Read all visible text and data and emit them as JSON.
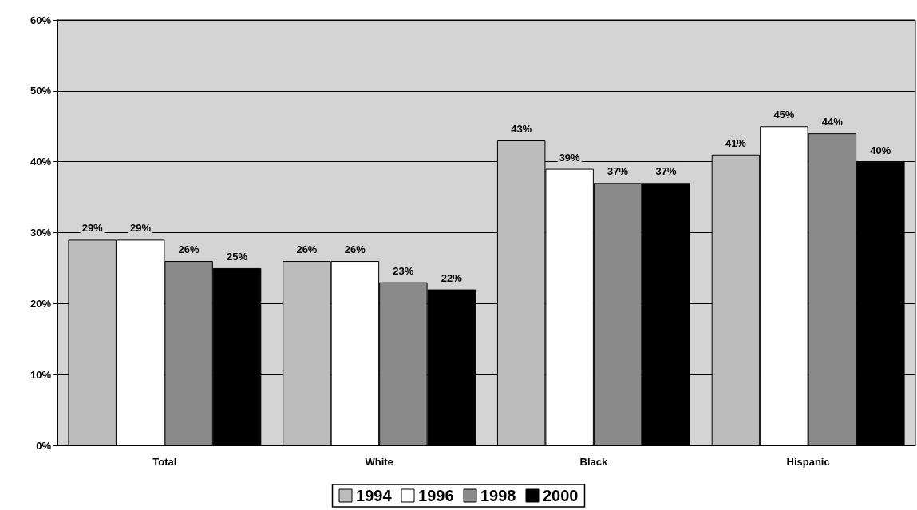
{
  "chart_data": {
    "type": "bar",
    "categories": [
      "Total",
      "White",
      "Black",
      "Hispanic"
    ],
    "series": [
      {
        "name": "1994",
        "color": "#bcbcbc",
        "values": [
          29,
          26,
          43,
          41
        ],
        "value_labels": [
          "29%",
          "26%",
          "43%",
          "41%"
        ]
      },
      {
        "name": "1996",
        "color": "#ffffff",
        "values": [
          29,
          26,
          39,
          45
        ],
        "value_labels": [
          "29%",
          "26%",
          "39%",
          "45%"
        ]
      },
      {
        "name": "1998",
        "color": "#8a8a8a",
        "values": [
          26,
          23,
          37,
          44
        ],
        "value_labels": [
          "26%",
          "23%",
          "37%",
          "44%"
        ]
      },
      {
        "name": "2000",
        "color": "#000000",
        "values": [
          25,
          22,
          37,
          40
        ],
        "value_labels": [
          "25%",
          "22%",
          "37%",
          "40%"
        ]
      }
    ],
    "ylim": [
      0,
      60
    ],
    "yticks": [
      {
        "value": 0,
        "label": "0%"
      },
      {
        "value": 10,
        "label": "10%"
      },
      {
        "value": 20,
        "label": "20%"
      },
      {
        "value": 30,
        "label": "30%"
      },
      {
        "value": 40,
        "label": "40%"
      },
      {
        "value": 50,
        "label": "50%"
      },
      {
        "value": 60,
        "label": "60%"
      }
    ],
    "grid": "y",
    "legend": "bottom"
  }
}
